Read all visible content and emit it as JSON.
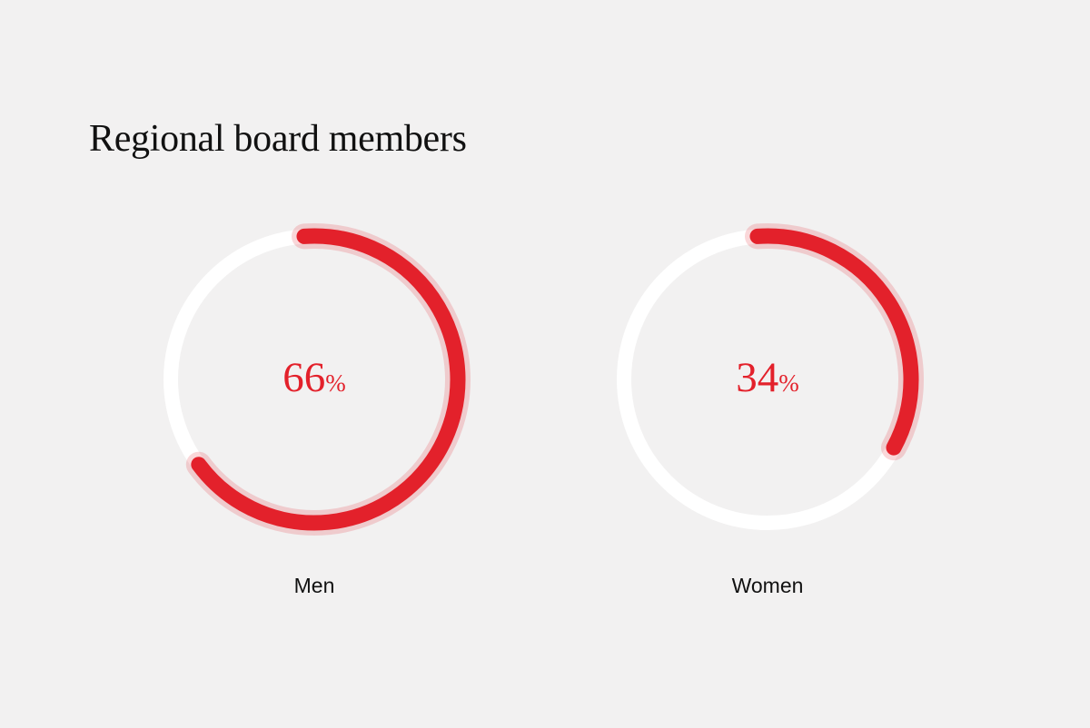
{
  "title": "Regional board members",
  "colors": {
    "accent": "#e3212b",
    "track": "#ffffff",
    "background": "#f2f1f1"
  },
  "chart_data": [
    {
      "type": "pie",
      "label": "Men",
      "value": 66,
      "unit": "%",
      "display_value": "66",
      "max": 100
    },
    {
      "type": "pie",
      "label": "Women",
      "value": 34,
      "unit": "%",
      "display_value": "34",
      "max": 100
    }
  ]
}
